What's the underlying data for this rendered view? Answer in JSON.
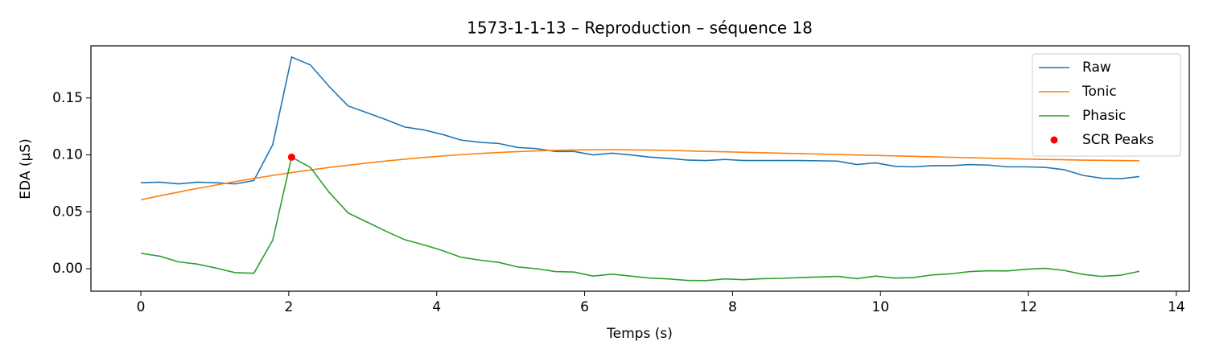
{
  "chart_data": {
    "type": "line",
    "title": "1573-1-1-13 – Reproduction – séquence 18",
    "x_label": "Temps (s)",
    "y_label": "EDA (µS)",
    "xlim": [
      -0.675,
      14.175
    ],
    "ylim": [
      -0.0198,
      0.1958
    ],
    "xticks": [
      0,
      2,
      4,
      6,
      8,
      10,
      12,
      14
    ],
    "yticks": [
      {
        "value": 0,
        "label": "0.00"
      },
      {
        "value": 0.05,
        "label": "0.05"
      },
      {
        "value": 0.1,
        "label": "0.10"
      },
      {
        "value": 0.15,
        "label": "0.15"
      }
    ],
    "grid": false,
    "legend": "upper right",
    "x": [
      0,
      0.255,
      0.509,
      0.764,
      1.019,
      1.274,
      1.528,
      1.783,
      2.038,
      2.292,
      2.547,
      2.802,
      3.057,
      3.311,
      3.566,
      3.821,
      4.075,
      4.33,
      4.585,
      4.84,
      5.094,
      5.349,
      5.604,
      5.858,
      6.113,
      6.368,
      6.623,
      6.877,
      7.132,
      7.387,
      7.642,
      7.896,
      8.151,
      8.406,
      8.66,
      8.915,
      9.17,
      9.425,
      9.679,
      9.934,
      10.189,
      10.443,
      10.698,
      10.953,
      11.208,
      11.462,
      11.717,
      11.972,
      12.226,
      12.481,
      12.736,
      12.991,
      13.245,
      13.5
    ],
    "series": [
      {
        "name": "Raw",
        "color": "#1f77b4",
        "values": [
          0.0755,
          0.076,
          0.0745,
          0.076,
          0.0755,
          0.0745,
          0.0775,
          0.109,
          0.186,
          0.179,
          0.16,
          0.143,
          0.137,
          0.131,
          0.1245,
          0.122,
          0.118,
          0.113,
          0.111,
          0.11,
          0.1065,
          0.1055,
          0.103,
          0.103,
          0.1,
          0.1015,
          0.1,
          0.098,
          0.097,
          0.0955,
          0.095,
          0.096,
          0.095,
          0.095,
          0.095,
          0.095,
          0.0948,
          0.0945,
          0.0915,
          0.093,
          0.09,
          0.0895,
          0.0905,
          0.0905,
          0.0915,
          0.091,
          0.0895,
          0.0895,
          0.089,
          0.087,
          0.082,
          0.0795,
          0.079,
          0.081
        ]
      },
      {
        "name": "Tonic",
        "color": "#ff7f0e",
        "values": [
          0.0605,
          0.064,
          0.0673,
          0.0705,
          0.0735,
          0.0765,
          0.0793,
          0.0819,
          0.0844,
          0.0867,
          0.0889,
          0.0909,
          0.0928,
          0.0946,
          0.0962,
          0.0977,
          0.099,
          0.1002,
          0.1012,
          0.1021,
          0.1029,
          0.1035,
          0.104,
          0.1043,
          0.1045,
          0.1045,
          0.1044,
          0.1042,
          0.1039,
          0.1035,
          0.1031,
          0.1027,
          0.1023,
          0.1019,
          0.1015,
          0.1011,
          0.1007,
          0.1003,
          0.0999,
          0.0995,
          0.0991,
          0.0987,
          0.0983,
          0.0979,
          0.0975,
          0.0971,
          0.0967,
          0.0963,
          0.096,
          0.0957,
          0.0954,
          0.0952,
          0.095,
          0.0949
        ]
      },
      {
        "name": "Phasic",
        "color": "#2ca02c",
        "values": [
          0.0135,
          0.011,
          0.006,
          0.004,
          0.0005,
          -0.0035,
          -0.004,
          0.025,
          0.098,
          0.089,
          0.067,
          0.049,
          0.041,
          0.033,
          0.0255,
          0.021,
          0.016,
          0.01,
          0.0075,
          0.0055,
          0.0015,
          0,
          -0.0025,
          -0.003,
          -0.0065,
          -0.0048,
          -0.0065,
          -0.0083,
          -0.009,
          -0.0103,
          -0.0105,
          -0.009,
          -0.0097,
          -0.0088,
          -0.0085,
          -0.0078,
          -0.0073,
          -0.0068,
          -0.0088,
          -0.0065,
          -0.0083,
          -0.0078,
          -0.0055,
          -0.0045,
          -0.0025,
          -0.0018,
          -0.002,
          -0.0005,
          0.0003,
          -0.0015,
          -0.005,
          -0.0068,
          -0.0058,
          -0.0023
        ]
      },
      {
        "name": "SCR Peaks",
        "color": "#ff0000",
        "type": "scatter",
        "x": [
          2.038
        ],
        "values": [
          0.098
        ]
      }
    ]
  }
}
